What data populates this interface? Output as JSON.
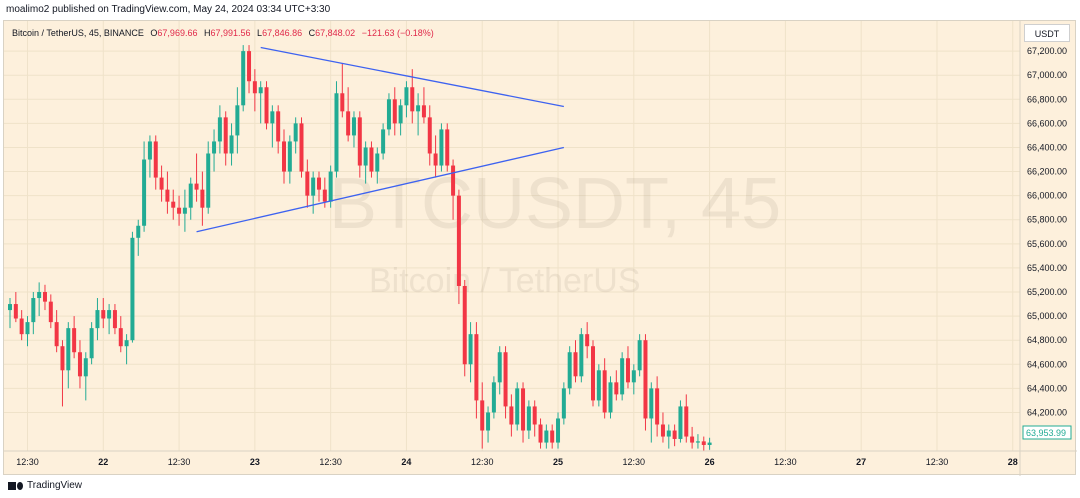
{
  "header": {
    "published": "moalimo2 published on TradingView.com, May 24, 2024 03:34 UTC+3:30"
  },
  "legend": {
    "symbol": "Bitcoin / TetherUS, 45, BINANCE",
    "o_label": "O",
    "o": "67,969.66",
    "h_label": "H",
    "h": "67,991.56",
    "l_label": "L",
    "l": "67,846.86",
    "c_label": "C",
    "c": "67,848.02",
    "change": "−121.63 (−0.18%)"
  },
  "currency_button": "USDT",
  "watermark": {
    "main": "BTCUSDT, 45",
    "sub": "Bitcoin / TetherUS"
  },
  "footer": {
    "brand": "TradingView"
  },
  "price_tag": "63,953.99",
  "colors": {
    "up": "#22ab94",
    "down": "#f23645",
    "trendline": "#3d62f0",
    "background": "#fdf0dc"
  },
  "chart_data": {
    "type": "candlestick",
    "symbol": "BTCUSDT",
    "interval": "45",
    "ylim": [
      63880,
      67450
    ],
    "yticks": [
      64200,
      64400,
      64600,
      64800,
      65000,
      65200,
      65400,
      65600,
      65800,
      66000,
      66200,
      66400,
      66600,
      66800,
      67000,
      67200
    ],
    "ytick_labels": [
      "64,200.00",
      "64,400.00",
      "64,600.00",
      "64,800.00",
      "65,000.00",
      "65,200.00",
      "65,400.00",
      "65,600.00",
      "65,800.00",
      "66,000.00",
      "66,200.00",
      "66,400.00",
      "66,600.00",
      "66,800.00",
      "67,000.00",
      "67,200.00"
    ],
    "xticks": [
      {
        "label": "12:30",
        "bar": 3
      },
      {
        "label": "22",
        "bar": 16
      },
      {
        "label": "12:30",
        "bar": 29
      },
      {
        "label": "23",
        "bar": 42
      },
      {
        "label": "12:30",
        "bar": 55
      },
      {
        "label": "24",
        "bar": 68
      },
      {
        "label": "12:30",
        "bar": 81
      },
      {
        "label": "25",
        "bar": 94
      },
      {
        "label": "12:30",
        "bar": 107
      },
      {
        "label": "26",
        "bar": 120
      },
      {
        "label": "12:30",
        "bar": 133
      },
      {
        "label": "27",
        "bar": 146
      },
      {
        "label": "12:30",
        "bar": 159
      },
      {
        "label": "28",
        "bar": 172
      }
    ],
    "last_price": 63953.99,
    "trendlines": [
      {
        "name": "upper",
        "from": {
          "bar": 43,
          "price": 67230
        },
        "to": {
          "bar": 95,
          "price": 66740
        }
      },
      {
        "name": "lower",
        "from": {
          "bar": 32,
          "price": 65700
        },
        "to": {
          "bar": 95,
          "price": 66400
        }
      }
    ],
    "candles": [
      [
        65050,
        65150,
        64900,
        65100
      ],
      [
        65100,
        65200,
        64950,
        64980
      ],
      [
        64980,
        65050,
        64800,
        64850
      ],
      [
        64850,
        65000,
        64750,
        64950
      ],
      [
        64950,
        65200,
        64850,
        65150
      ],
      [
        65150,
        65280,
        65000,
        65200
      ],
      [
        65200,
        65260,
        65050,
        65120
      ],
      [
        65120,
        65180,
        64900,
        64950
      ],
      [
        64950,
        65050,
        64700,
        64750
      ],
      [
        64750,
        64800,
        64250,
        64550
      ],
      [
        64550,
        64950,
        64400,
        64900
      ],
      [
        64900,
        65000,
        64650,
        64700
      ],
      [
        64700,
        64800,
        64400,
        64500
      ],
      [
        64500,
        64700,
        64300,
        64650
      ],
      [
        64650,
        64950,
        64600,
        64900
      ],
      [
        64900,
        65150,
        64800,
        65050
      ],
      [
        65050,
        65150,
        64900,
        64980
      ],
      [
        64980,
        65100,
        64850,
        65050
      ],
      [
        65050,
        65100,
        64850,
        64900
      ],
      [
        64900,
        65000,
        64700,
        64750
      ],
      [
        64750,
        64850,
        64600,
        64800
      ],
      [
        64800,
        65700,
        64780,
        65650
      ],
      [
        65650,
        65800,
        65500,
        65750
      ],
      [
        65750,
        66450,
        65700,
        66300
      ],
      [
        66300,
        66500,
        66150,
        66450
      ],
      [
        66450,
        66500,
        66050,
        66150
      ],
      [
        66150,
        66250,
        65950,
        66050
      ],
      [
        66050,
        66200,
        65850,
        65950
      ],
      [
        65950,
        66050,
        65800,
        65900
      ],
      [
        65900,
        66000,
        65750,
        65850
      ],
      [
        65850,
        66050,
        65700,
        65900
      ],
      [
        65900,
        66150,
        65800,
        66100
      ],
      [
        66100,
        66350,
        65950,
        66050
      ],
      [
        66050,
        66200,
        65750,
        65900
      ],
      [
        65900,
        66450,
        65850,
        66350
      ],
      [
        66350,
        66550,
        66200,
        66450
      ],
      [
        66450,
        66750,
        66350,
        66650
      ],
      [
        66650,
        66700,
        66250,
        66350
      ],
      [
        66350,
        66600,
        66250,
        66500
      ],
      [
        66500,
        66900,
        66350,
        66750
      ],
      [
        66750,
        67250,
        66700,
        67200
      ],
      [
        67200,
        67250,
        66850,
        66950
      ],
      [
        66950,
        67050,
        66700,
        66850
      ],
      [
        66850,
        66950,
        66600,
        66900
      ],
      [
        66900,
        66950,
        66550,
        66600
      ],
      [
        66600,
        66750,
        66400,
        66700
      ],
      [
        66700,
        66750,
        66350,
        66450
      ],
      [
        66450,
        66550,
        66100,
        66200
      ],
      [
        66200,
        66500,
        66100,
        66450
      ],
      [
        66450,
        66650,
        66350,
        66600
      ],
      [
        66600,
        66650,
        66150,
        66200
      ],
      [
        66200,
        66300,
        65900,
        66000
      ],
      [
        66000,
        66200,
        65850,
        66150
      ],
      [
        66150,
        66200,
        65950,
        66050
      ],
      [
        66050,
        66150,
        65900,
        65950
      ],
      [
        65950,
        66250,
        65900,
        66200
      ],
      [
        66200,
        66950,
        66150,
        66850
      ],
      [
        66850,
        67100,
        66650,
        66700
      ],
      [
        66700,
        66900,
        66450,
        66500
      ],
      [
        66500,
        66700,
        66400,
        66650
      ],
      [
        66650,
        66700,
        66150,
        66250
      ],
      [
        66250,
        66450,
        66100,
        66400
      ],
      [
        66400,
        66450,
        66150,
        66200
      ],
      [
        66200,
        66400,
        66100,
        66350
      ],
      [
        66350,
        66600,
        66300,
        66550
      ],
      [
        66550,
        66850,
        66500,
        66800
      ],
      [
        66800,
        66900,
        66500,
        66600
      ],
      [
        66600,
        66800,
        66500,
        66750
      ],
      [
        66750,
        66950,
        66650,
        66900
      ],
      [
        66900,
        67050,
        66600,
        66700
      ],
      [
        66700,
        66850,
        66500,
        66750
      ],
      [
        66750,
        66900,
        66600,
        66650
      ],
      [
        66650,
        66750,
        66250,
        66350
      ],
      [
        66350,
        66500,
        66150,
        66250
      ],
      [
        66250,
        66600,
        66200,
        66550
      ],
      [
        66550,
        66600,
        66200,
        66250
      ],
      [
        66250,
        66300,
        65800,
        66000
      ],
      [
        66000,
        66050,
        65100,
        65250
      ],
      [
        65250,
        65300,
        64500,
        64600
      ],
      [
        64600,
        64950,
        64450,
        64850
      ],
      [
        64850,
        64950,
        64150,
        64300
      ],
      [
        64300,
        64450,
        63900,
        64050
      ],
      [
        64050,
        64250,
        63950,
        64200
      ],
      [
        64200,
        64500,
        64150,
        64450
      ],
      [
        64450,
        64750,
        64350,
        64700
      ],
      [
        64700,
        64750,
        64150,
        64250
      ],
      [
        64250,
        64350,
        64000,
        64100
      ],
      [
        64100,
        64450,
        64050,
        64400
      ],
      [
        64400,
        64450,
        63950,
        64050
      ],
      [
        64050,
        64300,
        63980,
        64250
      ],
      [
        64250,
        64300,
        64000,
        64100
      ],
      [
        64100,
        64150,
        63900,
        63950
      ],
      [
        63950,
        64100,
        63900,
        64050
      ],
      [
        64050,
        64100,
        63900,
        63950
      ],
      [
        63950,
        64200,
        63900,
        64150
      ],
      [
        64150,
        64450,
        64100,
        64400
      ],
      [
        64400,
        64750,
        64350,
        64700
      ],
      [
        64700,
        64800,
        64450,
        64500
      ],
      [
        64500,
        64900,
        64450,
        64850
      ],
      [
        64850,
        64950,
        64650,
        64750
      ],
      [
        64750,
        64800,
        64250,
        64300
      ],
      [
        64300,
        64600,
        64250,
        64550
      ],
      [
        64550,
        64650,
        64150,
        64200
      ],
      [
        64200,
        64500,
        64150,
        64450
      ],
      [
        64450,
        64550,
        64300,
        64350
      ],
      [
        64350,
        64700,
        64300,
        64650
      ],
      [
        64650,
        64750,
        64400,
        64450
      ],
      [
        64450,
        64600,
        64350,
        64550
      ],
      [
        64550,
        64850,
        64500,
        64800
      ],
      [
        64800,
        64850,
        64050,
        64150
      ],
      [
        64150,
        64450,
        63950,
        64400
      ],
      [
        64400,
        64500,
        64000,
        64100
      ],
      [
        64100,
        64200,
        63950,
        64000
      ],
      [
        64000,
        64100,
        63900,
        64050
      ],
      [
        64050,
        64100,
        63920,
        63980
      ],
      [
        63980,
        64300,
        63950,
        64250
      ],
      [
        64250,
        64350,
        63950,
        64000
      ],
      [
        64000,
        64080,
        63900,
        63950
      ],
      [
        63950,
        64020,
        63900,
        63960
      ],
      [
        63960,
        64000,
        63880,
        63930
      ],
      [
        63930,
        63990,
        63890,
        63950
      ]
    ]
  }
}
